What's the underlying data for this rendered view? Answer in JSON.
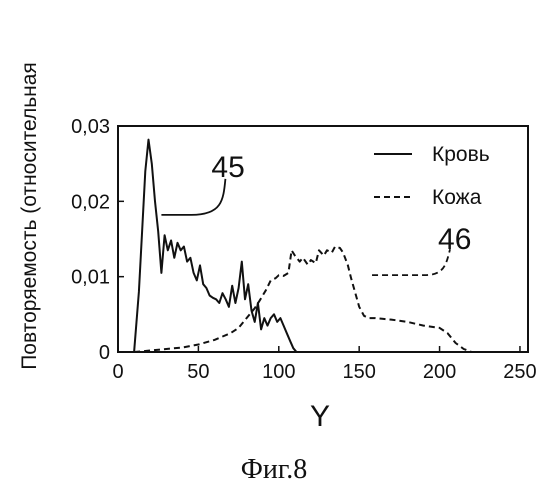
{
  "chart_data": {
    "type": "line",
    "xlabel": "Y",
    "ylabel": "Повторяемость (относительная",
    "xlim": [
      0,
      255
    ],
    "ylim": [
      0,
      0.03
    ],
    "xticks": [
      0,
      50,
      100,
      150,
      200,
      250
    ],
    "xtick_labels": [
      "0",
      "50",
      "100",
      "150",
      "200",
      "250"
    ],
    "yticks": [
      0,
      0.01,
      0.02,
      0.03
    ],
    "ytick_labels": [
      "0",
      "0,01",
      "0,02",
      "0,03"
    ],
    "grid": false,
    "legend_position": "top-right",
    "series": [
      {
        "name": "Кровь",
        "style": "solid",
        "color": "#111111",
        "x": [
          10,
          13,
          15,
          17,
          19,
          21,
          23,
          25,
          27,
          29,
          31,
          33,
          35,
          37,
          39,
          41,
          43,
          45,
          47,
          49,
          51,
          53,
          55,
          57,
          59,
          61,
          63,
          65,
          67,
          69,
          71,
          73,
          75,
          77,
          79,
          81,
          83,
          85,
          87,
          89,
          91,
          93,
          95,
          97,
          99,
          101,
          103,
          105,
          107,
          109,
          111
        ],
        "y": [
          0.0,
          0.008,
          0.016,
          0.024,
          0.0282,
          0.025,
          0.02,
          0.016,
          0.0105,
          0.0155,
          0.0135,
          0.0148,
          0.0125,
          0.0145,
          0.0135,
          0.014,
          0.012,
          0.0125,
          0.0105,
          0.0095,
          0.0115,
          0.009,
          0.0085,
          0.0075,
          0.0072,
          0.007,
          0.0065,
          0.0078,
          0.007,
          0.006,
          0.0088,
          0.0065,
          0.0085,
          0.012,
          0.007,
          0.009,
          0.0055,
          0.004,
          0.0065,
          0.003,
          0.0045,
          0.0035,
          0.0045,
          0.005,
          0.004,
          0.0045,
          0.0035,
          0.0025,
          0.0015,
          0.0005,
          0.0
        ]
      },
      {
        "name": "Кожа",
        "style": "dashed",
        "color": "#111111",
        "x": [
          10,
          20,
          30,
          40,
          50,
          60,
          70,
          75,
          80,
          85,
          88,
          92,
          95,
          98,
          100,
          103,
          106,
          108,
          110,
          113,
          115,
          118,
          120,
          123,
          125,
          128,
          130,
          133,
          135,
          138,
          140,
          143,
          145,
          148,
          150,
          153,
          156,
          160,
          165,
          170,
          180,
          190,
          200,
          205,
          210,
          215,
          220
        ],
        "y": [
          0.0,
          0.0002,
          0.0004,
          0.0006,
          0.001,
          0.0016,
          0.0025,
          0.0032,
          0.0045,
          0.0058,
          0.0068,
          0.0082,
          0.0095,
          0.0098,
          0.0102,
          0.0101,
          0.0105,
          0.0135,
          0.0128,
          0.012,
          0.0125,
          0.0116,
          0.0122,
          0.0118,
          0.0135,
          0.0128,
          0.0135,
          0.0132,
          0.014,
          0.0138,
          0.0132,
          0.0115,
          0.0098,
          0.0075,
          0.006,
          0.0048,
          0.0045,
          0.0045,
          0.0044,
          0.0043,
          0.004,
          0.0035,
          0.0032,
          0.0025,
          0.0012,
          0.0004,
          0.0
        ]
      }
    ],
    "annotations": [
      {
        "text": "45",
        "target_series": "Кровь",
        "target": [
          27,
          0.0182
        ]
      },
      {
        "text": "46",
        "target_series": "Кожа",
        "target": [
          158,
          0.0102
        ]
      }
    ]
  },
  "caption": "Фиг.8"
}
